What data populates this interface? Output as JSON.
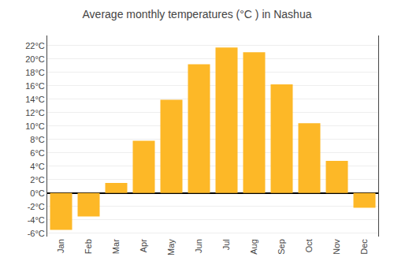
{
  "chart_data": {
    "type": "bar",
    "title": "Average monthly temperatures (°C ) in Nashua",
    "categories": [
      "Jan",
      "Feb",
      "Mar",
      "Apr",
      "May",
      "Jun",
      "Jul",
      "Aug",
      "Sep",
      "Oct",
      "Nov",
      "Dec"
    ],
    "values": [
      -5.5,
      -3.5,
      1.5,
      7.8,
      13.9,
      19.2,
      21.7,
      21.0,
      16.2,
      10.4,
      4.8,
      -2.2
    ],
    "color": "#FDB827",
    "ylim": [
      -6.5,
      23.5
    ],
    "yticks": [
      {
        "value": -6,
        "label": "-6°C"
      },
      {
        "value": -4,
        "label": "-4°C"
      },
      {
        "value": -2,
        "label": "-2°C"
      },
      {
        "value": 0,
        "label": "0°C"
      },
      {
        "value": 2,
        "label": "2°C"
      },
      {
        "value": 4,
        "label": "4°C"
      },
      {
        "value": 6,
        "label": "6°C"
      },
      {
        "value": 8,
        "label": "8°C"
      },
      {
        "value": 10,
        "label": "10°C"
      },
      {
        "value": 12,
        "label": "12°C"
      },
      {
        "value": 14,
        "label": "14°C"
      },
      {
        "value": 16,
        "label": "16°C"
      },
      {
        "value": 18,
        "label": "18°C"
      },
      {
        "value": 20,
        "label": "20°C"
      },
      {
        "value": 22,
        "label": "22°C"
      }
    ],
    "grid": true
  }
}
